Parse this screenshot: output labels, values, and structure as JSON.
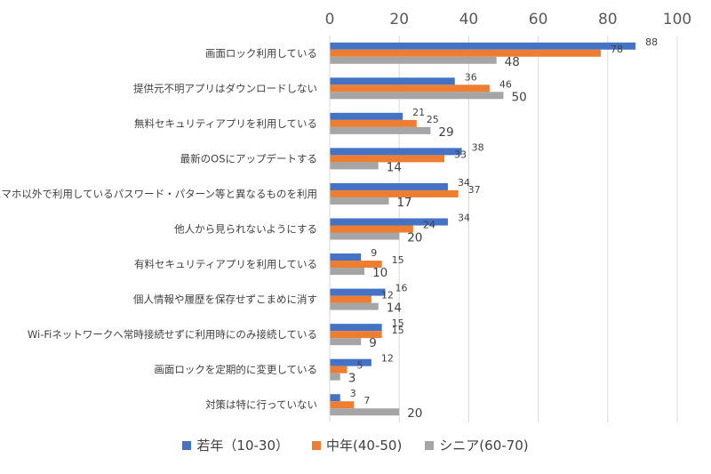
{
  "chart_data": {
    "type": "bar",
    "orientation": "horizontal",
    "categories": [
      "画面ロック利用している",
      "提供元不明アプリはダウンロードしない",
      "無料セキュリティアプリを利用している",
      "最新のOSにアップデートする",
      "スマホ以外で利用しているパスワード・パターン等と異なるものを利用",
      "他人から見られないようにする",
      "有料セキュリティアプリを利用している",
      "個人情報や履歴を保存せずこまめに消す",
      "Wi-Fiネットワークへ常時接続せずに利用時にのみ接続している",
      "画面ロックを定期的に変更している",
      "対策は特に行っていない"
    ],
    "series": [
      {
        "name": "若年（10-30）",
        "color": "#4472C4",
        "values": [
          88,
          36,
          21,
          38,
          34,
          34,
          9,
          16,
          15,
          12,
          3
        ]
      },
      {
        "name": "中年(40-50)",
        "color": "#ED7D31",
        "values": [
          78,
          46,
          25,
          33,
          37,
          24,
          15,
          12,
          15,
          5,
          7
        ]
      },
      {
        "name": "シニア(60-70)",
        "color": "#A5A5A5",
        "values": [
          48,
          50,
          29,
          14,
          17,
          20,
          10,
          14,
          9,
          3,
          20
        ]
      }
    ],
    "xlim": [
      0,
      100
    ],
    "xticks": [
      "0",
      "20",
      "40",
      "60",
      "80",
      "100"
    ],
    "grid": true,
    "legend_position": "bottom",
    "title": "",
    "xlabel": "",
    "ylabel": ""
  }
}
